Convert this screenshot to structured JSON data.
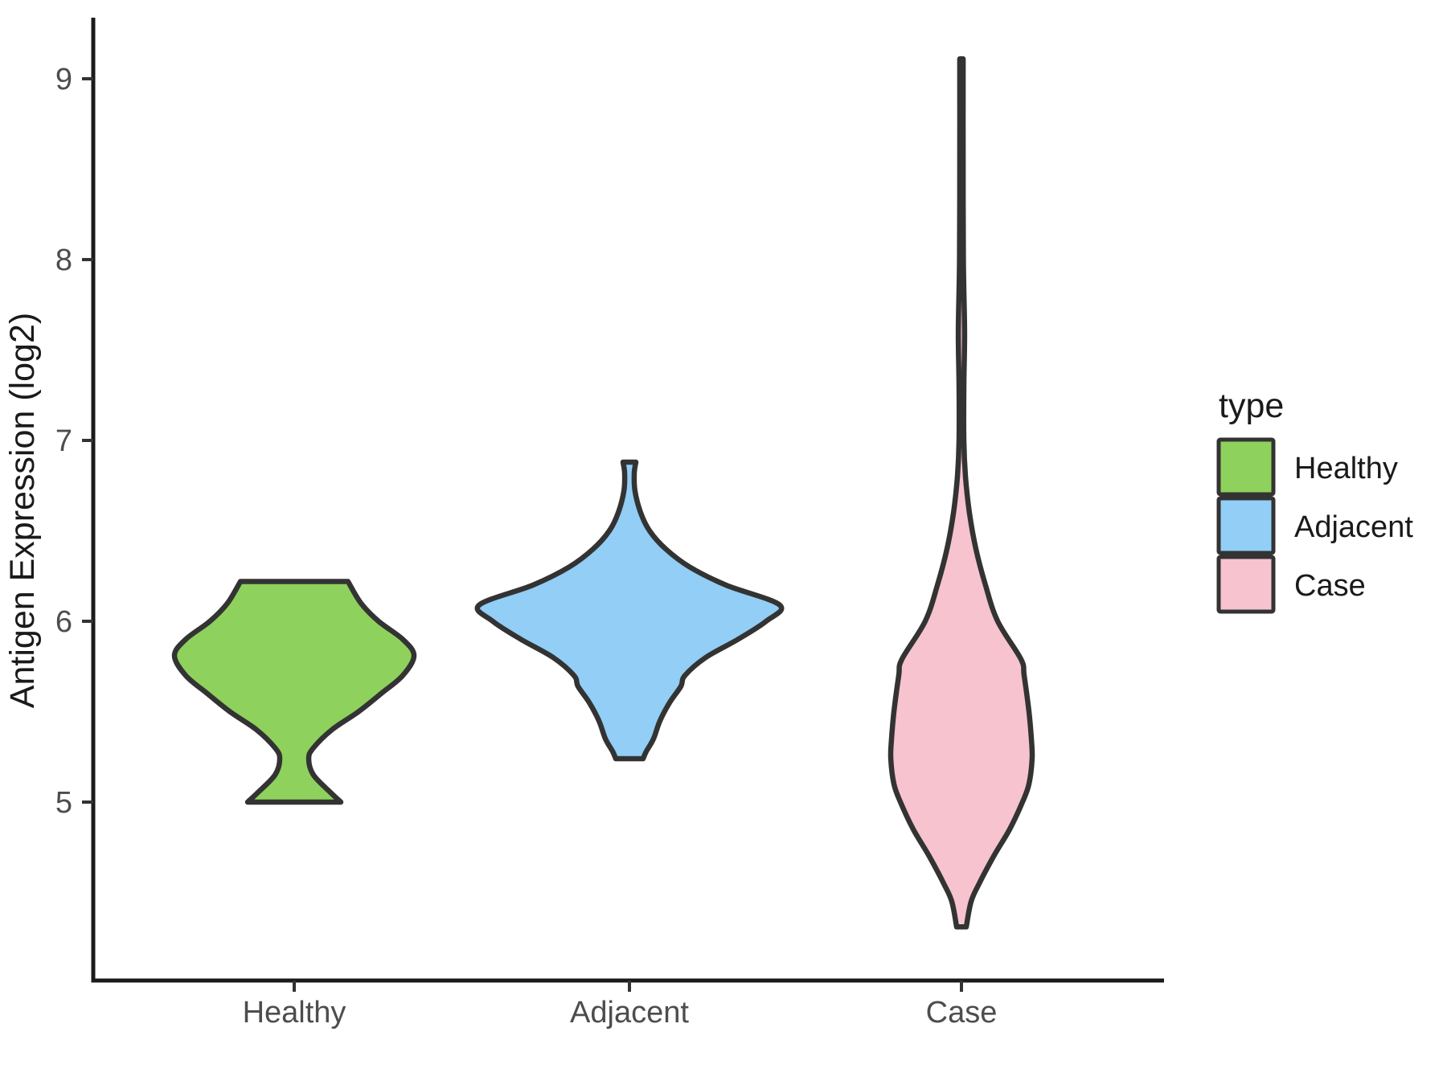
{
  "figure": {
    "background": "#ffffff",
    "axis_color": "#1a1a1a",
    "tick_color": "#333333",
    "tick_label_color": "#4d4d4d",
    "violin_outline_color": "#333333"
  },
  "y_axis": {
    "label": "Antigen Expression (log2)",
    "tick_labels": [
      "9",
      "8",
      "7",
      "6",
      "5"
    ]
  },
  "x_axis": {
    "tick_labels": [
      "Healthy",
      "Adjacent",
      "Case"
    ]
  },
  "legend": {
    "title": "type",
    "entries": [
      {
        "label": "Healthy",
        "color": "#8ed15c"
      },
      {
        "label": "Adjacent",
        "color": "#92cef5"
      },
      {
        "label": "Case",
        "color": "#f6c3cf"
      }
    ]
  },
  "chart_data": {
    "type": "violin",
    "title": "",
    "xlabel": "",
    "ylabel": "Antigen Expression (log2)",
    "categories": [
      "Healthy",
      "Adjacent",
      "Case"
    ],
    "ylim": [
      4.0,
      9.4
    ],
    "yticks": [
      5,
      6,
      7,
      8,
      9
    ],
    "grid": false,
    "legend_position": "right",
    "legend_title": "type",
    "profile_note": "profile = [expression value (log2), half-width as fraction of widest violin]",
    "series": [
      {
        "name": "Healthy",
        "color": "#8ed15c",
        "min": 5.0,
        "max": 6.22,
        "peak": 5.81,
        "profile": [
          [
            6.22,
            0.358
          ],
          [
            6.1,
            0.444
          ],
          [
            6.0,
            0.561
          ],
          [
            5.9,
            0.722
          ],
          [
            5.81,
            0.797
          ],
          [
            5.7,
            0.722
          ],
          [
            5.6,
            0.578
          ],
          [
            5.5,
            0.428
          ],
          [
            5.4,
            0.251
          ],
          [
            5.3,
            0.128
          ],
          [
            5.24,
            0.096
          ],
          [
            5.15,
            0.128
          ],
          [
            5.05,
            0.246
          ],
          [
            5.0,
            0.31
          ]
        ]
      },
      {
        "name": "Adjacent",
        "color": "#92cef5",
        "min": 5.24,
        "max": 6.88,
        "peak": 6.09,
        "profile": [
          [
            6.88,
            0.043
          ],
          [
            6.82,
            0.032
          ],
          [
            6.72,
            0.037
          ],
          [
            6.6,
            0.075
          ],
          [
            6.5,
            0.134
          ],
          [
            6.4,
            0.241
          ],
          [
            6.3,
            0.401
          ],
          [
            6.2,
            0.642
          ],
          [
            6.09,
            1.0
          ],
          [
            6.0,
            0.909
          ],
          [
            5.9,
            0.722
          ],
          [
            5.8,
            0.508
          ],
          [
            5.7,
            0.369
          ],
          [
            5.64,
            0.342
          ],
          [
            5.55,
            0.267
          ],
          [
            5.45,
            0.203
          ],
          [
            5.35,
            0.16
          ],
          [
            5.28,
            0.112
          ],
          [
            5.24,
            0.091
          ]
        ]
      },
      {
        "name": "Case",
        "color": "#f6c3cf",
        "min": 4.31,
        "max": 9.11,
        "peak": 5.24,
        "profile": [
          [
            9.11,
            0.011
          ],
          [
            8.6,
            0.011
          ],
          [
            8.0,
            0.013
          ],
          [
            7.6,
            0.021
          ],
          [
            7.3,
            0.016
          ],
          [
            7.0,
            0.016
          ],
          [
            6.8,
            0.027
          ],
          [
            6.6,
            0.053
          ],
          [
            6.4,
            0.096
          ],
          [
            6.2,
            0.16
          ],
          [
            6.0,
            0.241
          ],
          [
            5.79,
            0.396
          ],
          [
            5.7,
            0.417
          ],
          [
            5.5,
            0.449
          ],
          [
            5.35,
            0.465
          ],
          [
            5.24,
            0.47
          ],
          [
            5.1,
            0.449
          ],
          [
            5.0,
            0.406
          ],
          [
            4.85,
            0.321
          ],
          [
            4.7,
            0.214
          ],
          [
            4.55,
            0.118
          ],
          [
            4.45,
            0.064
          ],
          [
            4.31,
            0.032
          ]
        ]
      }
    ]
  }
}
